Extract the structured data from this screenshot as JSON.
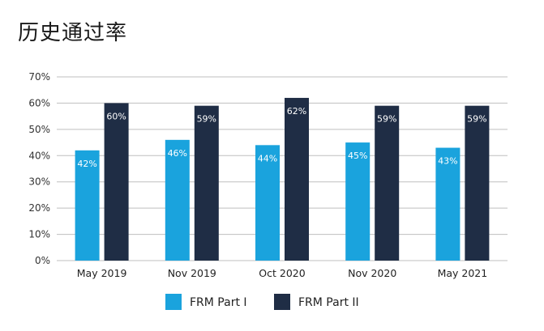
{
  "title": "历史通过率",
  "colors": {
    "part1": "#1aa3dd",
    "part2": "#1f2d45",
    "grid": "#bfbfbf"
  },
  "chart_data": {
    "type": "bar",
    "categories": [
      "May 2019",
      "Nov 2019",
      "Oct 2020",
      "Nov 2020",
      "May 2021"
    ],
    "series": [
      {
        "name": "FRM Part I",
        "values": [
          42,
          46,
          44,
          45,
          43
        ],
        "labels": [
          "42%",
          "46%",
          "44%",
          "45%",
          "43%"
        ]
      },
      {
        "name": "FRM Part II",
        "values": [
          60,
          59,
          62,
          59,
          59
        ],
        "labels": [
          "60%",
          "59%",
          "62%",
          "59%",
          "59%"
        ]
      }
    ],
    "yticks": [
      "0%",
      "10%",
      "20%",
      "30%",
      "40%",
      "50%",
      "60%",
      "70%"
    ],
    "ylim": [
      0,
      70
    ],
    "grid": true,
    "legend": "bottom"
  }
}
